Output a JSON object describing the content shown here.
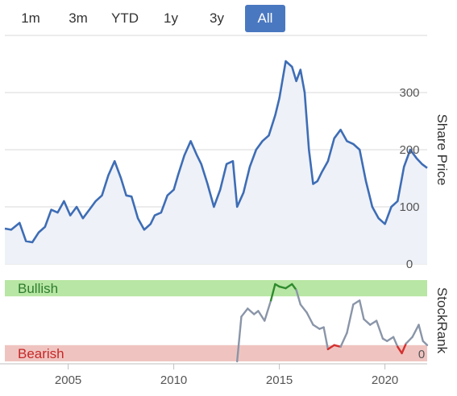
{
  "range_selector": {
    "buttons": [
      "1m",
      "3m",
      "YTD",
      "1y",
      "3y",
      "All"
    ],
    "active": "All"
  },
  "colors": {
    "price_line": "#3e6db5",
    "price_fill": "#eef1f8",
    "grid": "#d9d9d9",
    "bullish_band": "#b8e6a4",
    "bearish_band": "#efc4c0",
    "bullish_line": "#2e8b2e",
    "bearish_line": "#d43030",
    "neutral_line": "#8a95a8",
    "active_button": "#4a78c0"
  },
  "chart_data": [
    {
      "type": "area",
      "ylabel": "Share Price",
      "ylim": [
        0,
        400
      ],
      "yticks": [
        0,
        100,
        200,
        300
      ],
      "xlim": [
        2002.0,
        2022.0
      ],
      "grid": true,
      "x": [
        2002.0,
        2002.3,
        2002.7,
        2003.0,
        2003.3,
        2003.6,
        2003.9,
        2004.2,
        2004.5,
        2004.8,
        2005.1,
        2005.4,
        2005.7,
        2006.0,
        2006.3,
        2006.6,
        2006.9,
        2007.2,
        2007.5,
        2007.75,
        2008.0,
        2008.3,
        2008.6,
        2008.9,
        2009.1,
        2009.4,
        2009.7,
        2010.0,
        2010.2,
        2010.5,
        2010.8,
        2011.1,
        2011.3,
        2011.6,
        2011.9,
        2012.2,
        2012.5,
        2012.8,
        2013.0,
        2013.3,
        2013.6,
        2013.9,
        2014.2,
        2014.5,
        2014.8,
        2015.0,
        2015.3,
        2015.6,
        2015.8,
        2016.0,
        2016.2,
        2016.4,
        2016.6,
        2016.8,
        2017.0,
        2017.3,
        2017.6,
        2017.9,
        2018.2,
        2018.5,
        2018.8,
        2019.1,
        2019.4,
        2019.7,
        2020.0,
        2020.3,
        2020.6,
        2020.9,
        2021.2,
        2021.5,
        2021.75,
        2022.0
      ],
      "values": [
        62,
        60,
        72,
        40,
        38,
        55,
        65,
        95,
        90,
        110,
        85,
        100,
        80,
        95,
        110,
        120,
        155,
        180,
        150,
        120,
        118,
        80,
        60,
        70,
        85,
        90,
        120,
        130,
        155,
        190,
        215,
        190,
        175,
        140,
        100,
        130,
        175,
        180,
        100,
        125,
        170,
        200,
        215,
        225,
        260,
        290,
        355,
        345,
        320,
        340,
        300,
        200,
        140,
        145,
        160,
        180,
        220,
        235,
        215,
        210,
        200,
        145,
        100,
        80,
        70,
        100,
        110,
        170,
        200,
        185,
        175,
        168
      ]
    },
    {
      "type": "line",
      "ylabel": "StockRank",
      "ylim": [
        0,
        100
      ],
      "yticks": [
        0
      ],
      "xlim": [
        2002.0,
        2022.0
      ],
      "bands": [
        {
          "label": "Bullish",
          "from": 80,
          "to": 100
        },
        {
          "label": "Bearish",
          "from": 0,
          "to": 20
        }
      ],
      "x": [
        2013.0,
        2013.2,
        2013.5,
        2013.8,
        2014.0,
        2014.3,
        2014.6,
        2014.8,
        2015.0,
        2015.3,
        2015.6,
        2015.8,
        2016.0,
        2016.3,
        2016.6,
        2016.9,
        2017.1,
        2017.3,
        2017.6,
        2017.9,
        2018.2,
        2018.5,
        2018.8,
        2019.0,
        2019.3,
        2019.6,
        2019.9,
        2020.1,
        2020.4,
        2020.6,
        2020.8,
        2021.0,
        2021.3,
        2021.6,
        2021.8,
        2022.0
      ],
      "values": [
        0,
        55,
        65,
        58,
        62,
        50,
        75,
        95,
        92,
        90,
        95,
        88,
        70,
        60,
        45,
        40,
        42,
        15,
        20,
        18,
        35,
        70,
        75,
        52,
        45,
        50,
        28,
        25,
        30,
        18,
        10,
        22,
        30,
        45,
        25,
        20
      ]
    }
  ],
  "x_axis": {
    "ticks": [
      2005,
      2010,
      2015,
      2020
    ]
  }
}
